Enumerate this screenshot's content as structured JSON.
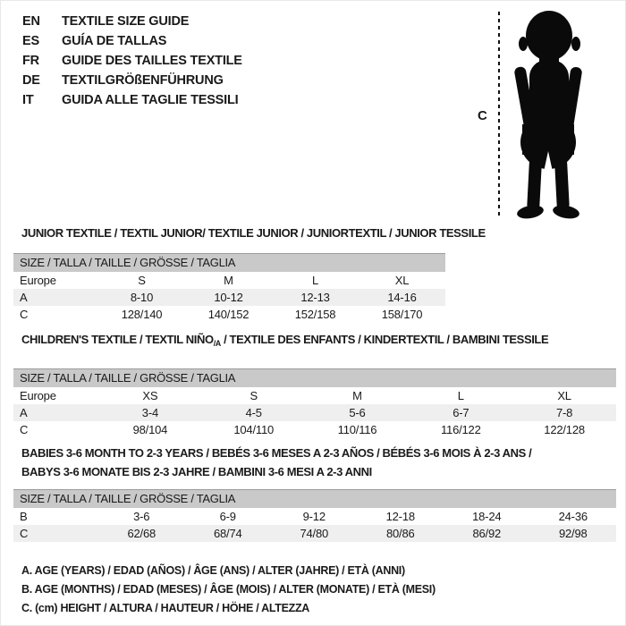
{
  "page": {
    "background": "#ffffff",
    "border_color": "#e8e8e8"
  },
  "colors": {
    "text": "#1a1a1a",
    "size_bar_bg": "#c9c9c9",
    "size_bar_top_border": "#9c9c9c",
    "row_alt_bg": "#efefef",
    "silhouette": "#0a0a0a",
    "dash_line": "#111111"
  },
  "languages": [
    {
      "code": "EN",
      "label": "TEXTILE SIZE GUIDE"
    },
    {
      "code": "ES",
      "label": "GUÍA DE TALLAS"
    },
    {
      "code": "FR",
      "label": "GUIDE DES TAILLES TEXTILE"
    },
    {
      "code": "DE",
      "label": "TEXTILGRÖßENFÜHRUNG"
    },
    {
      "code": "IT",
      "label": "GUIDA ALLE TAGLIE TESSILI"
    }
  ],
  "figure": {
    "measure_label": "C"
  },
  "sections": [
    {
      "title_lines": [
        [
          {
            "text": "JUNIOR TEXTILE / TEXTIL JUNIOR/ TEXTILE JUNIOR / JUNIORTEXTIL / JUNIOR TESSILE"
          }
        ]
      ],
      "size_header": "SIZE / TALLA / TAILLE / GRÖSSE / TAGLIA",
      "rows": [
        {
          "label": "Europe",
          "values": [
            "S",
            "M",
            "L",
            "XL"
          ],
          "shaded": false
        },
        {
          "label": "A",
          "values": [
            "8-10",
            "10-12",
            "12-13",
            "14-16"
          ],
          "shaded": true
        },
        {
          "label": "C",
          "values": [
            "128/140",
            "140/152",
            "152/158",
            "158/170"
          ],
          "shaded": false
        }
      ]
    },
    {
      "title_lines": [
        [
          {
            "text": "CHILDREN'S TEXTILE / TEXTIL NIÑO"
          },
          {
            "text": "/A",
            "sub": true
          },
          {
            "text": " / TEXTILE DES ENFANTS / KINDERTEXTIL / BAMBINI TESSILE"
          }
        ]
      ],
      "size_header": "SIZE / TALLA / TAILLE / GRÖSSE / TAGLIA",
      "rows": [
        {
          "label": "Europe",
          "values": [
            "XS",
            "S",
            "M",
            "L",
            "XL"
          ],
          "shaded": false
        },
        {
          "label": "A",
          "values": [
            "3-4",
            "4-5",
            "5-6",
            "6-7",
            "7-8"
          ],
          "shaded": true
        },
        {
          "label": "C",
          "values": [
            "98/104",
            "104/110",
            "110/116",
            "116/122",
            "122/128"
          ],
          "shaded": false
        }
      ]
    },
    {
      "title_lines": [
        [
          {
            "text": "BABIES 3-6 MONTH TO 2-3 YEARS / BEBÉS 3-6 MESES A 2-3 AÑOS / BÉBÉS 3-6 MOIS À 2-3 ANS /"
          }
        ],
        [
          {
            "text": "BABYS 3-6 MONATE BIS 2-3 JAHRE / BAMBINI 3-6 MESI A 2-3 ANNI"
          }
        ]
      ],
      "size_header": "SIZE / TALLA / TAILLE / GRÖSSE / TAGLIA",
      "rows": [
        {
          "label": "B",
          "values": [
            "3-6",
            "6-9",
            "9-12",
            "12-18",
            "18-24",
            "24-36"
          ],
          "shaded": false
        },
        {
          "label": "C",
          "values": [
            "62/68",
            "68/74",
            "74/80",
            "80/86",
            "86/92",
            "92/98"
          ],
          "shaded": true
        }
      ]
    }
  ],
  "footnotes": [
    "A. AGE (YEARS) / EDAD (AÑOS) / ÂGE (ANS) / ALTER (JAHRE) / ETÀ (ANNI)",
    "B. AGE (MONTHS) / EDAD (MESES) / ÂGE (MOIS) / ALTER (MONATE) / ETÀ (MESI)",
    "C. (cm) HEIGHT / ALTURA / HAUTEUR / HÖHE / ALTEZZA"
  ]
}
